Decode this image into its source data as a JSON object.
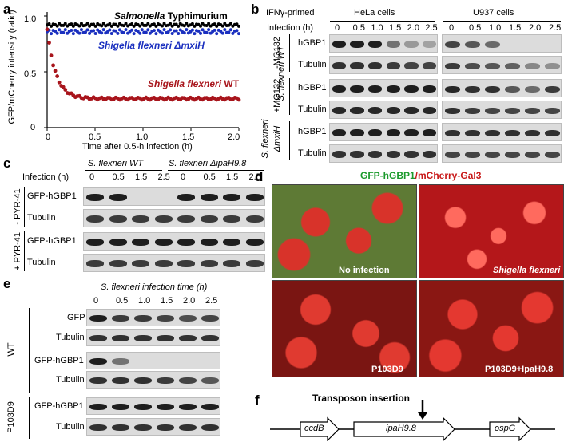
{
  "panel_a": {
    "label": "a",
    "ylabel": "GFP/mCherry intensity (ratio)",
    "xlabel": "Time after 0.5-h infection (h)",
    "yticks": [
      "0",
      "0.5",
      "1.0"
    ],
    "xticks": [
      "0",
      "0.5",
      "1.0",
      "1.5",
      "2.0"
    ],
    "chart_data": {
      "type": "scatter",
      "xlim": [
        0,
        2.0
      ],
      "ylim": [
        0,
        1.0
      ],
      "series": [
        {
          "name": "Salmonella Typhimurium",
          "color": "#000000",
          "level": 0.92
        },
        {
          "name": "Shigella flexneri ΔmxiH",
          "color": "#1a2fbf",
          "level": 0.86
        },
        {
          "name": "Shigella flexneri WT",
          "color": "#a8151c",
          "start": 0.88,
          "plateau": 0.26
        }
      ]
    },
    "legend_salmonella_a": "Salmonella",
    "legend_salmonella_b": " Typhimurium",
    "legend_mxih_a": "Shigella flexneri Δ",
    "legend_mxih_b": "mxiH",
    "legend_wt_a": "Shigella flexneri",
    "legend_wt_b": " WT"
  },
  "panel_b": {
    "label": "b",
    "primed": "IFNγ-primed",
    "hela": "HeLa cells",
    "u937": "U937 cells",
    "infection": "Infection (h)",
    "times": [
      "0",
      "0.5",
      "1.0",
      "1.5",
      "2.0",
      "2.5"
    ],
    "rows": [
      "hGBP1",
      "Tubulin",
      "hGBP1",
      "Tubulin",
      "hGBP1",
      "Tubulin"
    ],
    "group1_a": "S. flexneri WT",
    "group1_b": "-MG132",
    "group2": "+MG132",
    "group3_a": "S. flexneri",
    "group3_b": "ΔmxiH"
  },
  "panel_c": {
    "label": "c",
    "infection": "Infection (h)",
    "wt": "S. flexneri WT",
    "ipah": "S. flexneri ΔipaH9.8",
    "times_wt": [
      "0",
      "0.5",
      "1.5",
      "2.5"
    ],
    "times_ipah": [
      "0",
      "0.5",
      "1.5",
      "2.5"
    ],
    "rows": [
      "GFP-hGBP1",
      "Tubulin",
      "GFP-hGBP1",
      "Tubulin"
    ],
    "minus": "- PYR-41",
    "plus": "+ PYR-41"
  },
  "panel_d": {
    "label": "d",
    "title_green": "GFP-hGBP1",
    "title_red": "/mCherry-Gal3",
    "tiles": [
      "No infection",
      "Shigella flexneri",
      "P103D9",
      "P103D9+IpaH9.8"
    ]
  },
  "panel_e": {
    "label": "e",
    "title": "S. flexneri infection time (h)",
    "times": [
      "0",
      "0.5",
      "1.0",
      "1.5",
      "2.0",
      "2.5"
    ],
    "rows": [
      "GFP",
      "Tubulin",
      "GFP-hGBP1",
      "Tubulin",
      "GFP-hGBP1",
      "Tubulin"
    ],
    "wt": "WT",
    "p103": "P103D9"
  },
  "panel_f": {
    "label": "f",
    "insertion": "Transposon insertion",
    "genes": [
      "ccdB",
      "ipaH9.8",
      "ospG"
    ]
  }
}
